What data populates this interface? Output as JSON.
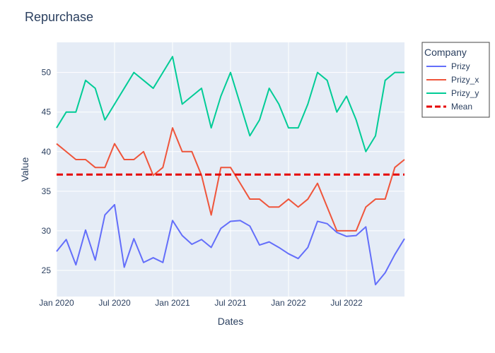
{
  "chart_data": {
    "type": "line",
    "title": "Repurchase",
    "xlabel": "Dates",
    "ylabel": "Value",
    "x_start": "2020-01",
    "x": [
      "2020-01",
      "2020-02",
      "2020-03",
      "2020-04",
      "2020-05",
      "2020-06",
      "2020-07",
      "2020-08",
      "2020-09",
      "2020-10",
      "2020-11",
      "2020-12",
      "2021-01",
      "2021-02",
      "2021-03",
      "2021-04",
      "2021-05",
      "2021-06",
      "2021-07",
      "2021-08",
      "2021-09",
      "2021-10",
      "2021-11",
      "2021-12",
      "2022-01",
      "2022-02",
      "2022-03",
      "2022-04",
      "2022-05",
      "2022-06",
      "2022-07",
      "2022-08",
      "2022-09",
      "2022-10",
      "2022-11",
      "2022-12",
      "2023-01"
    ],
    "xticks": [
      "Jan 2020",
      "Jul 2020",
      "Jan 2021",
      "Jul 2021",
      "Jan 2022",
      "Jul 2022"
    ],
    "xtick_index": [
      0,
      6,
      12,
      18,
      24,
      30
    ],
    "yticks": [
      25,
      30,
      35,
      40,
      45,
      50
    ],
    "ylim": [
      21.7,
      53.8
    ],
    "grid": true,
    "legend_title": "Company",
    "legend_position": "top-right outside",
    "series": [
      {
        "name": "Prizy",
        "color": "#636efa",
        "dash": "solid",
        "values": [
          27.4,
          28.9,
          25.7,
          30.1,
          26.3,
          32.0,
          33.3,
          25.4,
          29.0,
          26.0,
          26.6,
          26.0,
          31.3,
          29.4,
          28.3,
          28.9,
          27.9,
          30.3,
          31.2,
          31.3,
          30.6,
          28.2,
          28.6,
          27.9,
          27.1,
          26.5,
          27.9,
          31.2,
          30.9,
          29.8,
          29.3,
          29.4,
          30.5,
          23.2,
          24.7,
          27.0,
          29.0
        ]
      },
      {
        "name": "Prizy_x",
        "color": "#ef553b",
        "dash": "solid",
        "values": [
          41,
          40,
          39,
          39,
          38,
          38,
          41,
          39,
          39,
          40,
          37,
          38,
          43,
          40,
          40,
          37,
          32,
          38,
          38,
          36,
          34,
          34,
          33,
          33,
          34,
          33,
          34,
          36,
          33,
          30,
          30,
          30,
          33,
          34,
          34,
          38,
          39
        ]
      },
      {
        "name": "Prizy_y",
        "color": "#00cc96",
        "dash": "solid",
        "values": [
          43,
          45,
          45,
          49,
          48,
          44,
          46,
          48,
          50,
          49,
          48,
          50,
          52,
          46,
          47,
          48,
          43,
          47,
          50,
          46,
          42,
          44,
          48,
          46,
          43,
          43,
          46,
          50,
          49,
          45,
          47,
          44,
          40,
          42,
          49,
          50,
          50
        ]
      },
      {
        "name": "Mean",
        "color": "#e50000",
        "dash": "dash",
        "values": [
          37.1,
          37.1,
          37.1,
          37.1,
          37.1,
          37.1,
          37.1,
          37.1,
          37.1,
          37.1,
          37.1,
          37.1,
          37.1,
          37.1,
          37.1,
          37.1,
          37.1,
          37.1,
          37.1,
          37.1,
          37.1,
          37.1,
          37.1,
          37.1,
          37.1,
          37.1,
          37.1,
          37.1,
          37.1,
          37.1,
          37.1,
          37.1,
          37.1,
          37.1,
          37.1,
          37.1,
          37.1
        ]
      }
    ],
    "colors": {
      "plot_background": "#e5ecf6",
      "grid": "#ffffff",
      "title_text": "#2a3f5f",
      "axis_text": "#2a3f5f",
      "legend_border": "#444444"
    }
  }
}
